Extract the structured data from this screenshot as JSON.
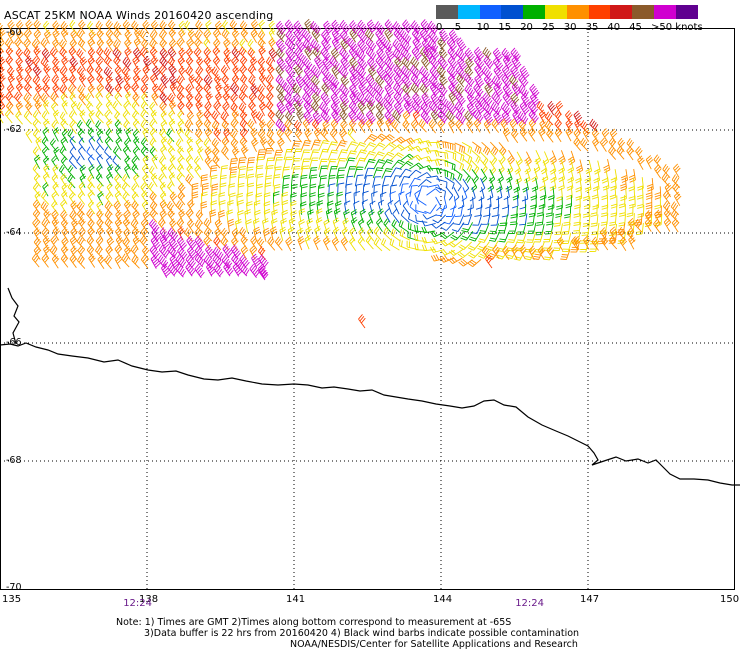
{
  "title": "ASCAT 25KM NOAA Winds 20160420 ascending",
  "legend": {
    "labels": [
      "0",
      "5",
      "10",
      "15",
      "20",
      "25",
      "30",
      "35",
      "40",
      "45",
      ">50 knots"
    ],
    "colors": [
      "#5a5a5a",
      "#00b8ff",
      "#1060ff",
      "#0050d0",
      "#00b000",
      "#f0e000",
      "#ff9000",
      "#ff4000",
      "#d01818",
      "#8b5a2b",
      "#d000d0",
      "#600090"
    ]
  },
  "map": {
    "lon_ticks": [
      "135",
      "138",
      "141",
      "144",
      "147",
      "150"
    ],
    "lat_ticks": [
      "-60",
      "-62",
      "-64",
      "-66",
      "-68",
      "-70"
    ],
    "time_labels": [
      {
        "text": "12:24",
        "lon": 137.8
      },
      {
        "text": "12:24",
        "lon": 145.8
      }
    ]
  },
  "notes": {
    "line1": "Note: 1) Times are GMT 2)Times along bottom correspond to measurement at -65S",
    "line2": "3)Data buffer is 22 hrs from 20160420 4) Black wind barbs indicate possible contamination",
    "line3": "NOAA/NESDIS/Center for Satellite Applications and Research"
  }
}
